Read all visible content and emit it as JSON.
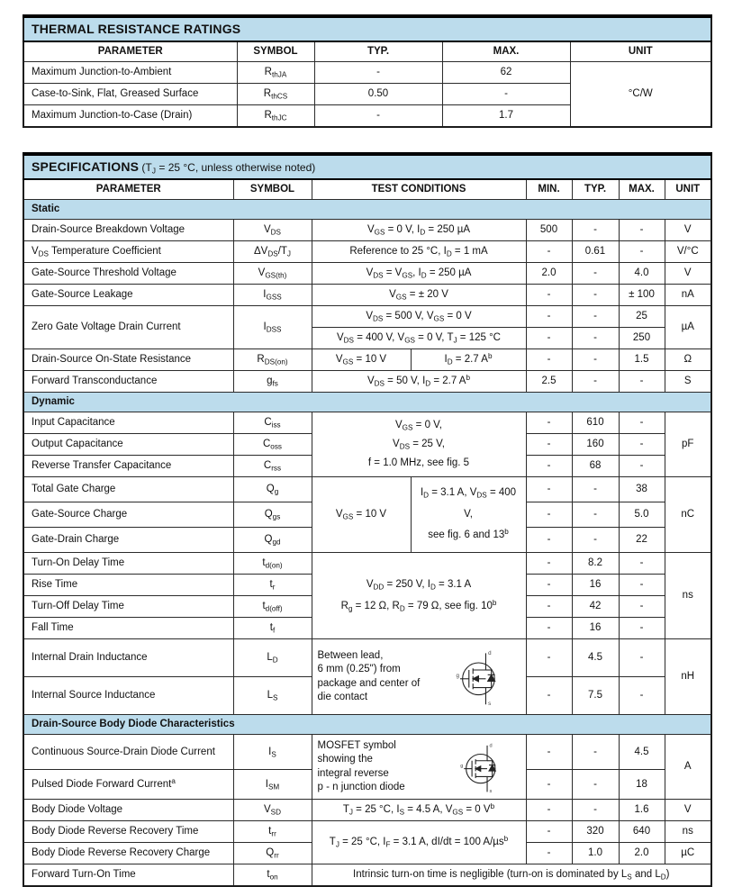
{
  "colors": {
    "header_blue": "#bcdcec",
    "border": "#000000",
    "background": "#ffffff"
  },
  "thermal": {
    "title": "THERMAL RESISTANCE RATINGS",
    "columns": [
      "PARAMETER",
      "SYMBOL",
      "TYP.",
      "MAX.",
      "UNIT"
    ],
    "rows": {
      "rthja": {
        "p": "Maximum Junction-to-Ambient",
        "sym": "R_{thJA}",
        "typ": "-",
        "max": "62"
      },
      "rthcs": {
        "p": "Case-to-Sink, Flat, Greased Surface",
        "sym": "R_{thCS}",
        "typ": "0.50",
        "max": "-"
      },
      "rthjc": {
        "p": "Maximum Junction-to-Case (Drain)",
        "sym": "R_{thJC}",
        "typ": "-",
        "max": "1.7"
      }
    },
    "unit": "°C/W"
  },
  "spec": {
    "title": "SPECIFICATIONS",
    "note": "(T_{J} = 25 °C, unless otherwise noted)",
    "columns": [
      "PARAMETER",
      "SYMBOL",
      "TEST CONDITIONS",
      "MIN.",
      "TYP.",
      "MAX.",
      "UNIT"
    ],
    "sections": {
      "static": "Static",
      "dynamic": "Dynamic",
      "diode": "Drain-Source Body Diode Characteristics"
    },
    "rows": {
      "vbr": {
        "p": "Drain-Source Breakdown Voltage",
        "sym": "V_{DS}",
        "cond": "V_{GS} = 0 V, I_{D} = 250 µA",
        "min": "500",
        "typ": "-",
        "max": "-",
        "unit": "V"
      },
      "tc": {
        "p": "V_{DS} Temperature Coefficient",
        "sym": "ΔV_{DS}/T_{J}",
        "cond": "Reference to 25 °C, I_{D} = 1 mA",
        "min": "-",
        "typ": "0.61",
        "max": "-",
        "unit": "V/°C"
      },
      "vth": {
        "p": "Gate-Source Threshold Voltage",
        "sym": "V_{GS(th)}",
        "cond": "V_{DS} = V_{GS}, I_{D} = 250 µA",
        "min": "2.0",
        "typ": "-",
        "max": "4.0",
        "unit": "V"
      },
      "igss": {
        "p": "Gate-Source Leakage",
        "sym": "I_{GSS}",
        "cond": "V_{GS} = ± 20 V",
        "min": "-",
        "typ": "-",
        "max": "± 100",
        "unit": "nA"
      },
      "idss": {
        "p": "Zero Gate Voltage Drain Current",
        "sym": "I_{DSS}",
        "cond1": "V_{DS} = 500 V, V_{GS} = 0 V",
        "min1": "-",
        "typ1": "-",
        "max1": "25",
        "cond2": "V_{DS} = 400 V, V_{GS} = 0 V, T_{J} = 125 °C",
        "min2": "-",
        "typ2": "-",
        "max2": "250",
        "unit": "µA"
      },
      "rdson": {
        "p": "Drain-Source On-State Resistance",
        "sym": "R_{DS(on)}",
        "cond_a": "V_{GS} = 10 V",
        "cond_b": "I_{D} = 2.7 A^{b}",
        "min": "-",
        "typ": "-",
        "max": "1.5",
        "unit": "Ω"
      },
      "gfs": {
        "p": "Forward Transconductance",
        "sym": "g_{fs}",
        "cond": "V_{DS} = 50 V, I_{D} = 2.7 A^{b}",
        "min": "2.5",
        "typ": "-",
        "max": "-",
        "unit": "S"
      },
      "cap": {
        "cond_lines": {
          "l1": "V_{GS} = 0 V,",
          "l2": "V_{DS} = 25 V,",
          "l3": "f = 1.0 MHz, see fig. 5"
        },
        "unit": "pF",
        "ciss": {
          "p": "Input Capacitance",
          "sym": "C_{iss}",
          "min": "-",
          "typ": "610",
          "max": "-"
        },
        "coss": {
          "p": "Output Capacitance",
          "sym": "C_{oss}",
          "min": "-",
          "typ": "160",
          "max": "-"
        },
        "crss": {
          "p": "Reverse Transfer Capacitance",
          "sym": "C_{rss}",
          "min": "-",
          "typ": "68",
          "max": "-"
        }
      },
      "charge": {
        "cond_a": "V_{GS} = 10 V",
        "cond_b": {
          "l1": "I_{D} = 3.1 A, V_{DS} = 400 V,",
          "l2": "see fig. 6 and 13^{b}"
        },
        "unit": "nC",
        "qg": {
          "p": "Total Gate Charge",
          "sym": "Q_{g}",
          "min": "-",
          "typ": "-",
          "max": "38"
        },
        "qgs": {
          "p": "Gate-Source Charge",
          "sym": "Q_{gs}",
          "min": "-",
          "typ": "-",
          "max": "5.0"
        },
        "qgd": {
          "p": "Gate-Drain Charge",
          "sym": "Q_{gd}",
          "min": "-",
          "typ": "-",
          "max": "22"
        }
      },
      "timing": {
        "cond_lines": {
          "l1": "V_{DD} = 250 V, I_{D} = 3.1 A",
          "l2": "R_{g} = 12 Ω, R_{D} = 79 Ω, see fig. 10^{b}"
        },
        "unit": "ns",
        "tdon": {
          "p": "Turn-On Delay Time",
          "sym": "t_{d(on)}",
          "min": "-",
          "typ": "8.2",
          "max": "-"
        },
        "tr": {
          "p": "Rise Time",
          "sym": "t_{r}",
          "min": "-",
          "typ": "16",
          "max": "-"
        },
        "tdoff": {
          "p": "Turn-Off Delay Time",
          "sym": "t_{d(off)}",
          "min": "-",
          "typ": "42",
          "max": "-"
        },
        "tf": {
          "p": "Fall Time",
          "sym": "t_{f}",
          "min": "-",
          "typ": "16",
          "max": "-"
        }
      },
      "induct": {
        "cond_lines": {
          "l1": "Between lead,",
          "l2": "6 mm (0.25\") from",
          "l3": "package and center of",
          "l4": "die contact"
        },
        "unit": "nH",
        "ld": {
          "p": "Internal Drain Inductance",
          "sym": "L_{D}",
          "min": "-",
          "typ": "4.5",
          "max": "-"
        },
        "ls": {
          "p": "Internal Source Inductance",
          "sym": "L_{S}",
          "min": "-",
          "typ": "7.5",
          "max": "-"
        }
      },
      "bodydiode": {
        "cond_lines": {
          "l1": "MOSFET symbol",
          "l2": "showing the",
          "l3": "integral reverse",
          "l4": "p - n junction diode"
        },
        "unit": "A",
        "is": {
          "p": "Continuous Source-Drain Diode Current",
          "sym": "I_{S}",
          "min": "-",
          "typ": "-",
          "max": "4.5"
        },
        "ism": {
          "p": "Pulsed Diode Forward Current^{a}",
          "sym": "I_{SM}",
          "min": "-",
          "typ": "-",
          "max": "18"
        }
      },
      "vsd": {
        "p": "Body Diode Voltage",
        "sym": "V_{SD}",
        "cond": "T_{J} = 25 °C, I_{S} = 4.5 A, V_{GS} = 0 V^{b}",
        "min": "-",
        "typ": "-",
        "max": "1.6",
        "unit": "V"
      },
      "rr": {
        "cond": "T_{J} = 25 °C, I_{F} = 3.1 A, dI/dt = 100 A/µs^{b}",
        "trr": {
          "p": "Body Diode Reverse Recovery Time",
          "sym": "t_{rr}",
          "min": "-",
          "typ": "320",
          "max": "640",
          "unit": "ns"
        },
        "qrr": {
          "p": "Body Diode Reverse Recovery Charge",
          "sym": "Q_{rr}",
          "min": "-",
          "typ": "1.0",
          "max": "2.0",
          "unit": "µC"
        }
      },
      "ton": {
        "p": "Forward Turn-On Time",
        "sym": "t_{on}",
        "note": "Intrinsic turn-on time is negligible (turn-on is dominated by L_{S} and L_{D})"
      }
    },
    "mosfet_symbol_labels": {
      "drain": "d",
      "gate": "g",
      "source": "s"
    }
  }
}
